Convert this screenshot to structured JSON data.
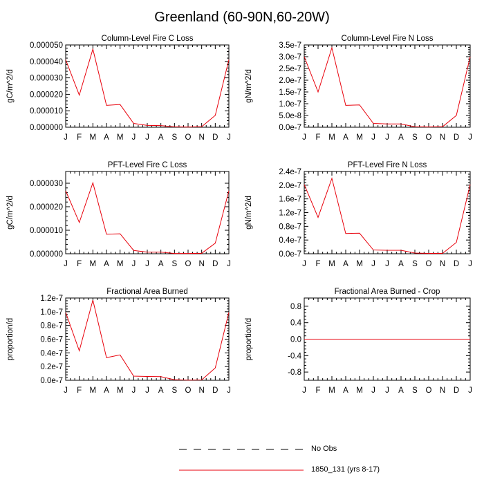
{
  "title": "Greenland (60-90N,60-20W)",
  "colors": {
    "series": "#e8000b",
    "axis": "#000000",
    "obs": "#000000"
  },
  "legend": [
    {
      "label": "No Obs",
      "style": "dashed",
      "color": "#000000"
    },
    {
      "label": "1850_131 (yrs 8-17)",
      "style": "solid",
      "color": "#e8000b"
    }
  ],
  "chart_data": [
    {
      "type": "line",
      "title": "Column-Level Fire C Loss",
      "ylabel": "gC/m^2/d",
      "xlabel": "",
      "categories": [
        "J",
        "F",
        "M",
        "A",
        "M",
        "J",
        "J",
        "A",
        "S",
        "O",
        "N",
        "D",
        "J"
      ],
      "ylim": [
        0,
        5e-05
      ],
      "yticks": [
        0,
        1e-05,
        2e-05,
        3e-05,
        4e-05,
        5e-05
      ],
      "yticklabels": [
        "0.000000",
        "0.000010",
        "0.000020",
        "0.000030",
        "0.000040",
        "0.000050"
      ],
      "series": [
        {
          "name": "1850_131 (yrs 8-17)",
          "values": [
            4.1e-05,
            1.95e-05,
            4.75e-05,
            1.33e-05,
            1.38e-05,
            2.3e-06,
            1.1e-06,
            1e-06,
            2e-07,
            1e-07,
            3e-07,
            7.2e-06,
            4.1e-05
          ]
        }
      ]
    },
    {
      "type": "line",
      "title": "Column-Level Fire N Loss",
      "ylabel": "gN/m^2/d",
      "xlabel": "",
      "categories": [
        "J",
        "F",
        "M",
        "A",
        "M",
        "J",
        "J",
        "A",
        "S",
        "O",
        "N",
        "D",
        "J"
      ],
      "ylim": [
        0,
        3.5e-07
      ],
      "yticks": [
        0,
        5e-08,
        1e-07,
        1.5e-07,
        2e-07,
        2.5e-07,
        3e-07,
        3.5e-07
      ],
      "yticklabels": [
        "0.0e-7",
        "5.0e-8",
        "1.0e-7",
        "1.5e-7",
        "2.0e-7",
        "2.5e-7",
        "3.0e-7",
        "3.5e-7"
      ],
      "series": [
        {
          "name": "1850_131 (yrs 8-17)",
          "values": [
            3e-07,
            1.5e-07,
            3.38e-07,
            9.3e-08,
            9.5e-08,
            1.6e-08,
            1.4e-08,
            1.4e-08,
            2e-09,
            1e-09,
            2e-09,
            5e-08,
            3e-07
          ]
        }
      ]
    },
    {
      "type": "line",
      "title": "PFT-Level Fire C Loss",
      "ylabel": "gC/m^2/d",
      "xlabel": "",
      "categories": [
        "J",
        "F",
        "M",
        "A",
        "M",
        "J",
        "J",
        "A",
        "S",
        "O",
        "N",
        "D",
        "J"
      ],
      "ylim": [
        0,
        3.5e-05
      ],
      "yticks": [
        0,
        1e-05,
        2e-05,
        3e-05
      ],
      "yticklabels": [
        "0.000000",
        "0.000010",
        "0.000020",
        "0.000030"
      ],
      "series": [
        {
          "name": "1850_131 (yrs 8-17)",
          "values": [
            2.68e-05,
            1.33e-05,
            3.02e-05,
            8.3e-06,
            8.5e-06,
            1.4e-06,
            7e-07,
            7e-07,
            1e-07,
            1e-07,
            2e-07,
            4.5e-06,
            2.68e-05
          ]
        }
      ]
    },
    {
      "type": "line",
      "title": "PFT-Level Fire N Loss",
      "ylabel": "gN/m^2/d",
      "xlabel": "",
      "categories": [
        "J",
        "F",
        "M",
        "A",
        "M",
        "J",
        "J",
        "A",
        "S",
        "O",
        "N",
        "D",
        "J"
      ],
      "ylim": [
        0,
        2.4e-07
      ],
      "yticks": [
        0,
        4e-08,
        8e-08,
        1.2e-07,
        1.6e-07,
        2e-07,
        2.4e-07
      ],
      "yticklabels": [
        "0.0e-7",
        "0.4e-7",
        "0.8e-7",
        "1.2e-7",
        "1.6e-7",
        "2.0e-7",
        "2.4e-7"
      ],
      "series": [
        {
          "name": "1850_131 (yrs 8-17)",
          "values": [
            2.02e-07,
            1.06e-07,
            2.2e-07,
            5.9e-08,
            6e-08,
            1.1e-08,
            1e-08,
            1e-08,
            2e-09,
            1e-09,
            1e-09,
            3.3e-08,
            2.02e-07
          ]
        }
      ]
    },
    {
      "type": "line",
      "title": "Fractional Area Burned",
      "ylabel": "proportion/d",
      "xlabel": "",
      "categories": [
        "J",
        "F",
        "M",
        "A",
        "M",
        "J",
        "J",
        "A",
        "S",
        "O",
        "N",
        "D",
        "J"
      ],
      "ylim": [
        0,
        1.2e-07
      ],
      "yticks": [
        0,
        2e-08,
        4e-08,
        6e-08,
        8e-08,
        1e-07,
        1.2e-07
      ],
      "yticklabels": [
        "0.0e-7",
        "0.2e-7",
        "0.4e-7",
        "0.6e-7",
        "0.8e-7",
        "1.0e-7",
        "1.2e-7"
      ],
      "series": [
        {
          "name": "1850_131 (yrs 8-17)",
          "values": [
            9.9e-08,
            4.3e-08,
            1.17e-07,
            3.3e-08,
            3.7e-08,
            6e-09,
            5.5e-09,
            5.3e-09,
            8e-10,
            3e-10,
            5e-10,
            1.8e-08,
            9.9e-08
          ]
        }
      ]
    },
    {
      "type": "line",
      "title": "Fractional Area Burned - Crop",
      "ylabel": "proportion/d",
      "xlabel": "",
      "categories": [
        "J",
        "F",
        "M",
        "A",
        "M",
        "J",
        "J",
        "A",
        "S",
        "O",
        "N",
        "D",
        "J"
      ],
      "ylim": [
        -1.0,
        1.0
      ],
      "yticks": [
        -0.8,
        -0.4,
        0,
        0.4,
        0.8
      ],
      "yticklabels": [
        "-0.8",
        "-0.4",
        "0.0",
        "0.4",
        "0.8"
      ],
      "series": [
        {
          "name": "1850_131 (yrs 8-17)",
          "values": [
            0,
            0,
            0,
            0,
            0,
            0,
            0,
            0,
            0,
            0,
            0,
            0,
            0
          ]
        }
      ]
    }
  ]
}
